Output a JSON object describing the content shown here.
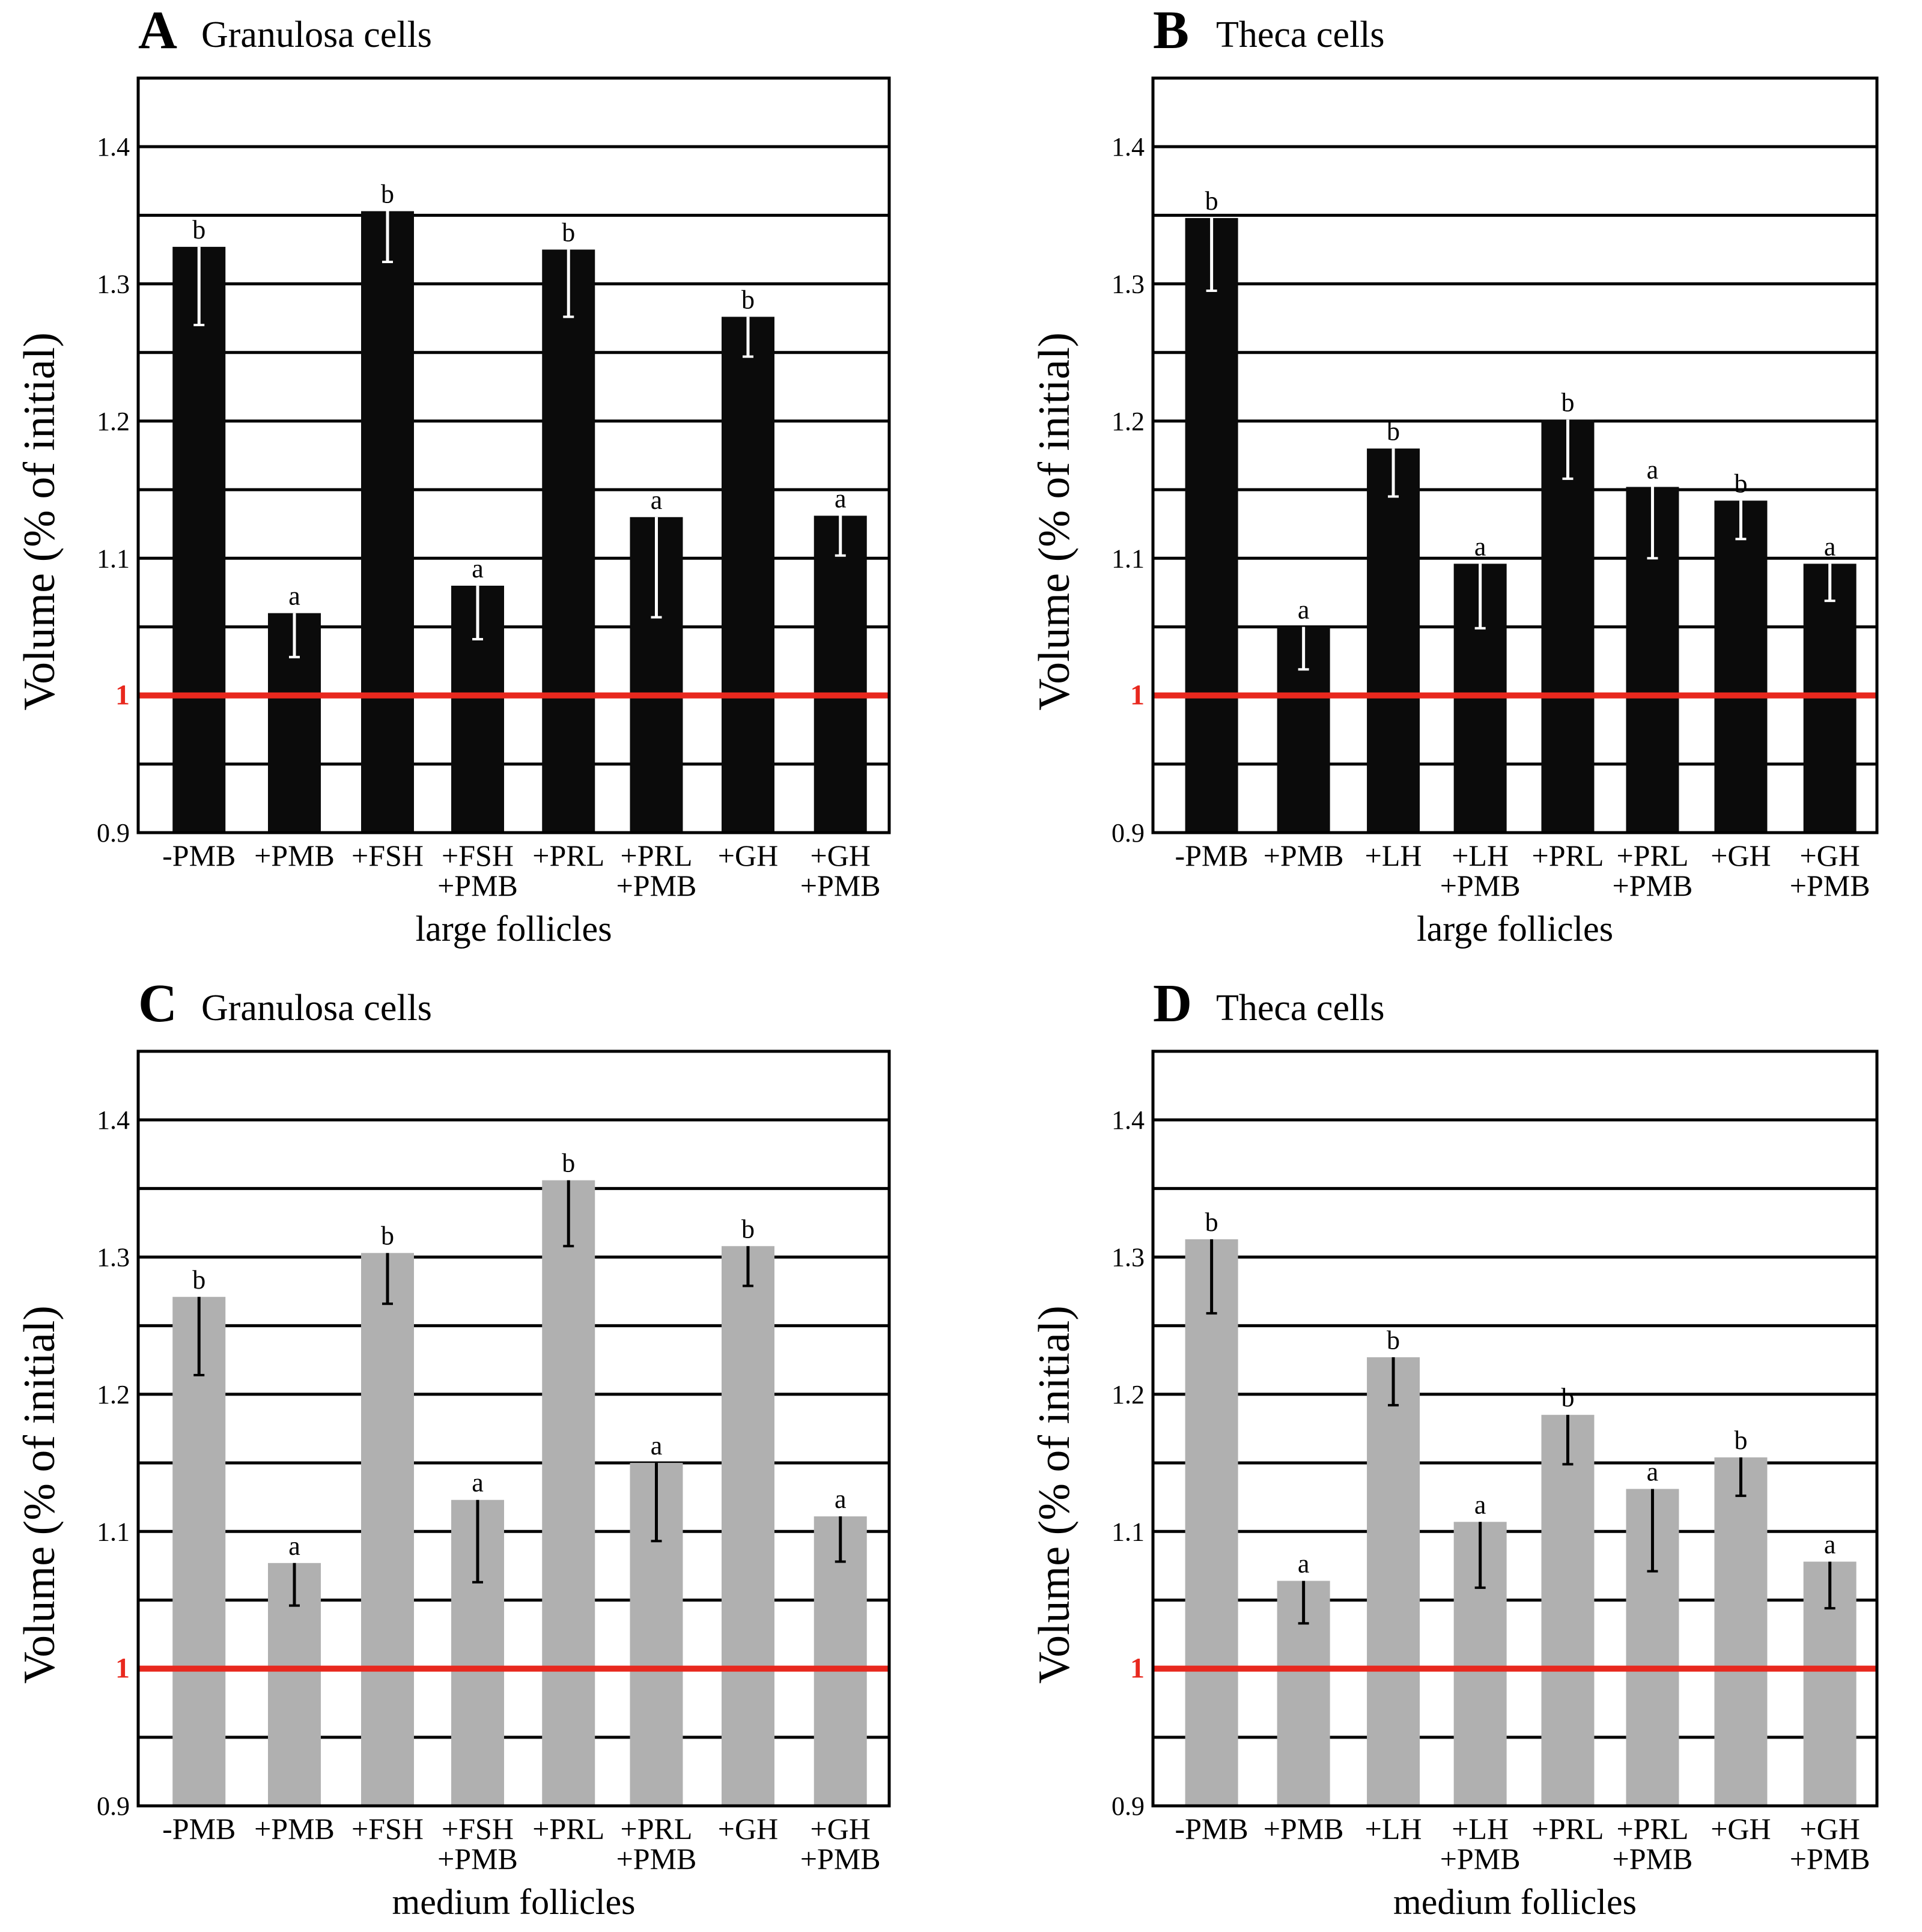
{
  "colors": {
    "dark_bar": "#0b0b0b",
    "gray_bar": "#b0b0b0",
    "baseline": "#e8281e",
    "grid": "#000000"
  },
  "chart_data": [
    {
      "type": "bar",
      "panel": "A",
      "title": "Granulosa cells",
      "xlabel": "large follicles",
      "ylabel": "Volume (%  of initial)",
      "ylim": [
        0.9,
        1.45
      ],
      "yticks": [
        "0.9",
        "1",
        "1.1",
        "1.2",
        "1.3",
        "1.4"
      ],
      "bar_color": "dark",
      "categories": [
        [
          "-PMB"
        ],
        [
          "+PMB"
        ],
        [
          "+FSH"
        ],
        [
          "+FSH",
          "+PMB"
        ],
        [
          "+PRL"
        ],
        [
          "+PRL",
          "+PMB"
        ],
        [
          "+GH"
        ],
        [
          "+GH",
          "+PMB"
        ]
      ],
      "values": [
        1.327,
        1.06,
        1.353,
        1.08,
        1.325,
        1.13,
        1.276,
        1.131
      ],
      "errors": [
        0.057,
        0.032,
        0.037,
        0.039,
        0.049,
        0.073,
        0.029,
        0.029
      ],
      "significance": [
        "b",
        "a",
        "b",
        "a",
        "b",
        "a",
        "b",
        "a"
      ]
    },
    {
      "type": "bar",
      "panel": "B",
      "title": "Theca cells",
      "xlabel": "large follicles",
      "ylabel": "Volume (%  of initial)",
      "ylim": [
        0.9,
        1.45
      ],
      "yticks": [
        "0.9",
        "1",
        "1.1",
        "1.2",
        "1.3",
        "1.4"
      ],
      "bar_color": "dark",
      "categories": [
        [
          "-PMB"
        ],
        [
          "+PMB"
        ],
        [
          "+LH"
        ],
        [
          "+LH",
          "+PMB"
        ],
        [
          "+PRL"
        ],
        [
          "+PRL",
          "+PMB"
        ],
        [
          "+GH"
        ],
        [
          "+GH",
          "+PMB"
        ]
      ],
      "values": [
        1.348,
        1.05,
        1.18,
        1.096,
        1.201,
        1.152,
        1.142,
        1.096
      ],
      "errors": [
        0.053,
        0.031,
        0.035,
        0.047,
        0.043,
        0.052,
        0.028,
        0.027
      ],
      "significance": [
        "b",
        "a",
        "b",
        "a",
        "b",
        "a",
        "b",
        "a"
      ]
    },
    {
      "type": "bar",
      "panel": "C",
      "title": "Granulosa cells",
      "xlabel": "medium follicles",
      "ylabel": "Volume (%  of initial)",
      "ylim": [
        0.9,
        1.45
      ],
      "yticks": [
        "0.9",
        "1",
        "1.1",
        "1.2",
        "1.3",
        "1.4"
      ],
      "bar_color": "gray",
      "categories": [
        [
          "-PMB"
        ],
        [
          "+PMB"
        ],
        [
          "+FSH"
        ],
        [
          "+FSH",
          "+PMB"
        ],
        [
          "+PRL"
        ],
        [
          "+PRL",
          "+PMB"
        ],
        [
          "+GH"
        ],
        [
          "+GH",
          "+PMB"
        ]
      ],
      "values": [
        1.271,
        1.077,
        1.303,
        1.123,
        1.356,
        1.15,
        1.308,
        1.111
      ],
      "errors": [
        0.057,
        0.031,
        0.037,
        0.06,
        0.048,
        0.057,
        0.029,
        0.033
      ],
      "significance": [
        "b",
        "a",
        "b",
        "a",
        "b",
        "a",
        "b",
        "a"
      ]
    },
    {
      "type": "bar",
      "panel": "D",
      "title": "Theca cells",
      "xlabel": "medium follicles",
      "ylabel": "Volume (%  of initial)",
      "ylim": [
        0.9,
        1.45
      ],
      "yticks": [
        "0.9",
        "1",
        "1.1",
        "1.2",
        "1.3",
        "1.4"
      ],
      "bar_color": "gray",
      "categories": [
        [
          "-PMB"
        ],
        [
          "+PMB"
        ],
        [
          "+LH"
        ],
        [
          "+LH",
          "+PMB"
        ],
        [
          "+PRL"
        ],
        [
          "+PRL",
          "+PMB"
        ],
        [
          "+GH"
        ],
        [
          "+GH",
          "+PMB"
        ]
      ],
      "values": [
        1.313,
        1.064,
        1.227,
        1.107,
        1.185,
        1.131,
        1.154,
        1.078
      ],
      "errors": [
        0.054,
        0.031,
        0.035,
        0.048,
        0.036,
        0.06,
        0.028,
        0.034
      ],
      "significance": [
        "b",
        "a",
        "b",
        "a",
        "b",
        "a",
        "b",
        "a"
      ]
    }
  ]
}
